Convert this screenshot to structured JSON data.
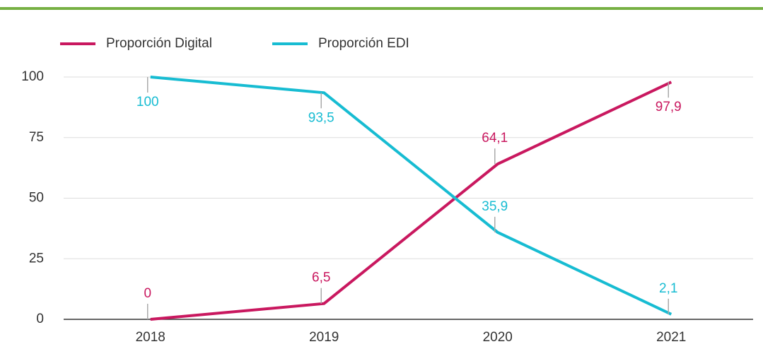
{
  "chart_data": {
    "type": "line",
    "categories": [
      "2018",
      "2019",
      "2020",
      "2021"
    ],
    "series": [
      {
        "name": "Proporción Digital",
        "color": "#c9185f",
        "values": [
          0,
          6.5,
          64.1,
          97.9
        ],
        "value_labels": [
          "0",
          "6,5",
          "64,1",
          "97,9"
        ]
      },
      {
        "name": "Proporción EDI",
        "color": "#17bcd2",
        "values": [
          100,
          93.5,
          35.9,
          2.1
        ],
        "value_labels": [
          "100",
          "93,5",
          "35,9",
          "2,1"
        ]
      }
    ],
    "ylim": [
      0,
      100
    ],
    "yticks": [
      0,
      25,
      50,
      75,
      100
    ],
    "grid": true,
    "legend": "top"
  }
}
